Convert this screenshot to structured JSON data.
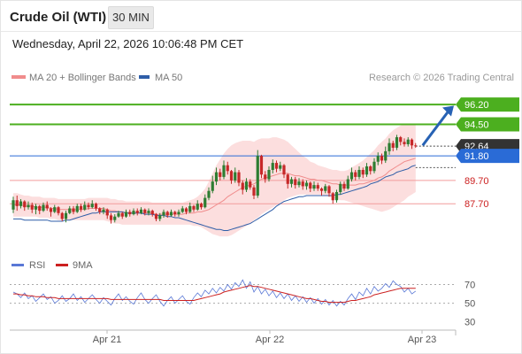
{
  "header": {
    "title": "Crude Oil (WTI)",
    "timeframe": "30 MIN",
    "datetime": "Wednesday, April 22, 2026 10:06:48 PM CET"
  },
  "legend": {
    "items": [
      {
        "label": "MA 20 + Bollinger Bands",
        "color": "#f08c8c"
      },
      {
        "label": "MA 50",
        "color": "#2f5ea8"
      }
    ],
    "credit": "Research © 2026 Trading Central"
  },
  "colors": {
    "up": "#2e7d32",
    "down": "#c62828",
    "target": "#4caf1f",
    "pivot": "#2a6bd6",
    "support": "#f29c9c",
    "current": "#333333",
    "band": "#fcdede",
    "arrow": "#2762b4",
    "rsi": "#5a78d6",
    "rsi_ma": "#cc2020"
  },
  "chart_data": [
    {
      "type": "candlestick",
      "name": "price",
      "x_ticks": [
        "Apr 21",
        "Apr 22",
        "Apr 23"
      ],
      "ylim": [
        84.0,
        97.5
      ],
      "levels": [
        {
          "value": 96.2,
          "label": "96.20",
          "kind": "target"
        },
        {
          "value": 94.5,
          "label": "94.50",
          "kind": "target"
        },
        {
          "value": 92.64,
          "label": "92.64",
          "kind": "current"
        },
        {
          "value": 91.8,
          "label": "91.80",
          "kind": "pivot"
        },
        {
          "value": 89.7,
          "label": "89.70",
          "kind": "support"
        },
        {
          "value": 87.7,
          "label": "87.70",
          "kind": "support"
        }
      ],
      "candles": [
        [
          87.2,
          88.0,
          88.3,
          86.9
        ],
        [
          88.0,
          87.5,
          88.4,
          87.1
        ],
        [
          87.5,
          87.9,
          88.1,
          87.3
        ],
        [
          87.9,
          87.4,
          88.0,
          87.1
        ],
        [
          87.4,
          87.6,
          87.9,
          87.2
        ],
        [
          87.6,
          87.2,
          87.8,
          86.9
        ],
        [
          87.2,
          87.5,
          87.7,
          86.8
        ],
        [
          87.5,
          87.1,
          87.6,
          86.8
        ],
        [
          87.1,
          87.6,
          87.8,
          87.0
        ],
        [
          87.6,
          87.3,
          87.9,
          87.1
        ],
        [
          87.3,
          87.0,
          87.4,
          86.6
        ],
        [
          87.0,
          87.4,
          87.6,
          86.9
        ],
        [
          87.4,
          86.9,
          87.5,
          86.7
        ],
        [
          86.9,
          86.4,
          87.0,
          86.2
        ],
        [
          86.4,
          86.9,
          87.1,
          86.1
        ],
        [
          86.9,
          87.3,
          87.5,
          86.8
        ],
        [
          87.3,
          87.0,
          87.5,
          86.8
        ],
        [
          87.0,
          87.5,
          87.7,
          86.9
        ],
        [
          87.5,
          87.2,
          87.7,
          87.0
        ],
        [
          87.2,
          87.6,
          87.9,
          87.1
        ],
        [
          87.6,
          87.4,
          87.8,
          87.2
        ],
        [
          87.4,
          87.7,
          88.0,
          87.3
        ],
        [
          87.7,
          87.3,
          87.8,
          87.1
        ],
        [
          87.3,
          87.0,
          87.4,
          86.8
        ],
        [
          87.0,
          87.2,
          87.4,
          86.8
        ],
        [
          87.2,
          86.7,
          87.3,
          86.4
        ],
        [
          86.7,
          86.3,
          86.9,
          86.0
        ],
        [
          86.3,
          86.6,
          86.8,
          86.1
        ],
        [
          86.6,
          86.9,
          87.1,
          86.5
        ],
        [
          86.9,
          86.6,
          87.0,
          86.4
        ],
        [
          86.6,
          87.0,
          87.2,
          86.5
        ],
        [
          87.0,
          86.8,
          87.2,
          86.6
        ],
        [
          86.8,
          87.1,
          87.3,
          86.7
        ],
        [
          87.1,
          86.9,
          87.3,
          86.7
        ],
        [
          86.9,
          87.2,
          87.4,
          86.8
        ],
        [
          87.2,
          86.9,
          87.3,
          86.7
        ],
        [
          86.9,
          87.1,
          87.3,
          86.7
        ],
        [
          87.1,
          86.8,
          87.2,
          86.6
        ],
        [
          86.8,
          86.4,
          86.9,
          86.2
        ],
        [
          86.4,
          86.7,
          86.9,
          86.2
        ],
        [
          86.7,
          87.0,
          87.2,
          86.5
        ],
        [
          87.0,
          86.7,
          87.1,
          86.5
        ],
        [
          86.7,
          87.0,
          87.2,
          86.6
        ],
        [
          87.0,
          86.8,
          87.1,
          86.6
        ],
        [
          86.8,
          87.0,
          87.2,
          86.6
        ],
        [
          87.0,
          87.3,
          87.5,
          86.9
        ],
        [
          87.3,
          87.0,
          87.4,
          86.8
        ],
        [
          87.0,
          87.5,
          87.8,
          86.9
        ],
        [
          87.5,
          87.2,
          87.6,
          87.0
        ],
        [
          87.2,
          87.7,
          88.0,
          87.1
        ],
        [
          87.7,
          87.4,
          87.8,
          87.2
        ],
        [
          87.4,
          88.2,
          88.5,
          87.3
        ],
        [
          88.2,
          88.8,
          89.1,
          88.0
        ],
        [
          88.8,
          89.6,
          90.1,
          88.6
        ],
        [
          89.6,
          90.4,
          90.8,
          89.3
        ],
        [
          90.4,
          90.0,
          90.7,
          89.7
        ],
        [
          90.0,
          91.0,
          91.4,
          89.8
        ],
        [
          91.0,
          90.5,
          91.3,
          90.2
        ],
        [
          90.5,
          89.7,
          90.6,
          89.4
        ],
        [
          89.7,
          90.4,
          90.8,
          89.5
        ],
        [
          90.4,
          89.5,
          90.6,
          89.2
        ],
        [
          89.5,
          88.9,
          89.7,
          88.5
        ],
        [
          88.9,
          89.6,
          89.9,
          88.7
        ],
        [
          89.6,
          89.1,
          89.8,
          88.9
        ],
        [
          89.1,
          88.4,
          89.3,
          88.1
        ],
        [
          88.4,
          91.8,
          92.3,
          88.2
        ],
        [
          91.8,
          90.2,
          91.9,
          89.9
        ],
        [
          90.2,
          89.8,
          90.5,
          89.5
        ],
        [
          89.8,
          90.6,
          90.9,
          89.6
        ],
        [
          90.6,
          91.2,
          91.5,
          90.3
        ],
        [
          91.2,
          90.7,
          91.4,
          90.4
        ],
        [
          90.7,
          91.0,
          91.3,
          90.5
        ],
        [
          91.0,
          90.2,
          91.1,
          89.9
        ],
        [
          90.2,
          89.4,
          90.3,
          89.0
        ],
        [
          89.4,
          89.8,
          90.0,
          89.1
        ],
        [
          89.8,
          89.3,
          90.0,
          89.0
        ],
        [
          89.3,
          89.6,
          89.9,
          89.1
        ],
        [
          89.6,
          89.2,
          89.8,
          88.9
        ],
        [
          89.2,
          89.5,
          89.7,
          88.9
        ],
        [
          89.5,
          89.0,
          89.6,
          88.7
        ],
        [
          89.0,
          89.3,
          89.6,
          88.8
        ],
        [
          89.3,
          89.0,
          89.5,
          88.8
        ],
        [
          89.0,
          88.8,
          89.1,
          88.4
        ],
        [
          88.8,
          89.2,
          89.4,
          88.6
        ],
        [
          89.2,
          88.6,
          89.3,
          88.3
        ],
        [
          88.6,
          88.0,
          88.7,
          87.7
        ],
        [
          88.0,
          88.7,
          88.9,
          87.8
        ],
        [
          88.7,
          89.4,
          89.6,
          88.5
        ],
        [
          89.4,
          89.0,
          89.6,
          88.8
        ],
        [
          89.0,
          89.8,
          90.1,
          88.9
        ],
        [
          89.8,
          90.4,
          90.8,
          89.6
        ],
        [
          90.4,
          90.0,
          90.6,
          89.7
        ],
        [
          90.0,
          90.6,
          90.9,
          89.8
        ],
        [
          90.6,
          90.2,
          90.8,
          89.9
        ],
        [
          90.2,
          90.9,
          91.2,
          90.0
        ],
        [
          90.9,
          90.5,
          91.0,
          90.2
        ],
        [
          90.5,
          91.3,
          91.6,
          90.3
        ],
        [
          91.3,
          91.8,
          92.1,
          91.0
        ],
        [
          91.8,
          91.4,
          92.0,
          91.1
        ],
        [
          91.4,
          92.2,
          92.6,
          91.2
        ],
        [
          92.2,
          92.9,
          93.3,
          91.9
        ],
        [
          92.9,
          92.5,
          93.1,
          92.2
        ],
        [
          92.5,
          93.4,
          93.6,
          92.3
        ],
        [
          93.4,
          93.0,
          93.5,
          92.7
        ],
        [
          93.0,
          92.8,
          93.3,
          92.6
        ],
        [
          92.8,
          93.2,
          93.4,
          92.6
        ],
        [
          93.2,
          92.7,
          93.3,
          92.4
        ],
        [
          92.7,
          92.64,
          92.9,
          92.5
        ]
      ],
      "ma20": [
        87.6,
        87.6,
        87.6,
        87.5,
        87.5,
        87.5,
        87.4,
        87.4,
        87.4,
        87.4,
        87.3,
        87.3,
        87.2,
        87.2,
        87.2,
        87.2,
        87.2,
        87.2,
        87.2,
        87.2,
        87.3,
        87.3,
        87.3,
        87.3,
        87.3,
        87.2,
        87.1,
        87.1,
        87.0,
        87.0,
        86.9,
        86.9,
        86.9,
        86.9,
        86.9,
        86.9,
        86.9,
        86.9,
        86.8,
        86.8,
        86.8,
        86.8,
        86.8,
        86.8,
        86.8,
        86.8,
        86.9,
        86.9,
        86.9,
        87.0,
        87.0,
        87.1,
        87.2,
        87.4,
        87.6,
        87.8,
        88.0,
        88.3,
        88.5,
        88.7,
        88.9,
        89.1,
        89.2,
        89.3,
        89.4,
        89.6,
        89.8,
        89.9,
        90.0,
        90.1,
        90.2,
        90.3,
        90.3,
        90.3,
        90.2,
        90.1,
        90.1,
        90.0,
        89.9,
        89.8,
        89.8,
        89.7,
        89.7,
        89.6,
        89.5,
        89.4,
        89.4,
        89.3,
        89.3,
        89.3,
        89.3,
        89.3,
        89.4,
        89.4,
        89.5,
        89.6,
        89.7,
        89.9,
        90.0,
        90.2,
        90.5,
        90.7,
        90.9,
        91.1,
        91.3,
        91.4,
        91.5,
        91.6
      ],
      "upper_band": [
        88.6,
        88.6,
        88.5,
        88.4,
        88.4,
        88.3,
        88.3,
        88.3,
        88.2,
        88.2,
        88.2,
        88.2,
        88.1,
        88.1,
        88.1,
        88.1,
        88.1,
        88.1,
        88.1,
        88.1,
        88.2,
        88.2,
        88.2,
        88.2,
        88.2,
        88.2,
        88.1,
        88.1,
        88.0,
        88.0,
        87.9,
        87.9,
        87.9,
        87.9,
        87.9,
        87.9,
        87.9,
        87.8,
        87.8,
        87.8,
        87.8,
        87.8,
        87.8,
        87.8,
        87.8,
        87.8,
        87.9,
        88.0,
        88.1,
        88.3,
        88.6,
        89.0,
        89.6,
        90.3,
        91.0,
        91.5,
        92.0,
        92.4,
        92.7,
        92.9,
        93.0,
        93.1,
        93.1,
        93.1,
        93.0,
        93.2,
        93.3,
        93.3,
        93.3,
        93.4,
        93.4,
        93.3,
        93.2,
        93.0,
        92.7,
        92.4,
        92.1,
        91.8,
        91.6,
        91.3,
        91.2,
        91.0,
        90.9,
        90.8,
        90.7,
        90.6,
        90.6,
        90.5,
        90.5,
        90.6,
        90.8,
        91.0,
        91.2,
        91.4,
        91.7,
        92.0,
        92.3,
        92.7,
        93.0,
        93.3,
        93.7,
        94.0,
        94.2,
        94.4,
        94.5,
        94.5,
        94.5,
        94.5
      ],
      "lower_band": [
        86.6,
        86.6,
        86.6,
        86.6,
        86.6,
        86.6,
        86.6,
        86.5,
        86.5,
        86.5,
        86.4,
        86.4,
        86.3,
        86.3,
        86.3,
        86.3,
        86.3,
        86.3,
        86.3,
        86.3,
        86.3,
        86.3,
        86.3,
        86.3,
        86.3,
        86.2,
        86.1,
        86.0,
        86.0,
        85.9,
        85.9,
        85.9,
        85.9,
        85.9,
        85.9,
        85.9,
        85.9,
        85.9,
        85.9,
        85.9,
        85.9,
        85.9,
        85.9,
        85.9,
        85.9,
        85.9,
        85.9,
        85.9,
        85.8,
        85.8,
        85.7,
        85.5,
        85.3,
        85.1,
        85.0,
        84.9,
        84.9,
        84.9,
        85.0,
        85.2,
        85.4,
        85.6,
        85.8,
        86.0,
        86.3,
        86.5,
        86.8,
        87.0,
        87.2,
        87.4,
        87.6,
        87.8,
        88.0,
        88.2,
        88.3,
        88.4,
        88.5,
        88.5,
        88.5,
        88.5,
        88.5,
        88.5,
        88.5,
        88.4,
        88.3,
        88.2,
        88.1,
        88.0,
        88.0,
        87.9,
        87.8,
        87.7,
        87.6,
        87.5,
        87.4,
        87.3,
        87.2,
        87.1,
        87.0,
        87.1,
        87.2,
        87.4,
        87.6,
        87.8,
        88.0,
        88.3,
        88.5,
        88.7
      ],
      "ma50": [
        86.4,
        86.4,
        86.4,
        86.3,
        86.3,
        86.3,
        86.3,
        86.3,
        86.3,
        86.3,
        86.2,
        86.2,
        86.2,
        86.2,
        86.3,
        86.3,
        86.4,
        86.5,
        86.6,
        86.7,
        86.8,
        86.9,
        86.9,
        87.0,
        87.0,
        87.0,
        87.0,
        87.0,
        87.0,
        87.0,
        86.9,
        86.9,
        86.9,
        86.9,
        86.9,
        86.8,
        86.8,
        86.8,
        86.7,
        86.7,
        86.7,
        86.6,
        86.6,
        86.5,
        86.5,
        86.4,
        86.3,
        86.2,
        86.1,
        86.0,
        85.9,
        85.8,
        85.7,
        85.6,
        85.5,
        85.5,
        85.4,
        85.4,
        85.5,
        85.6,
        85.7,
        85.8,
        85.9,
        86.0,
        86.2,
        86.4,
        86.6,
        86.8,
        87.0,
        87.2,
        87.5,
        87.7,
        87.9,
        88.0,
        88.1,
        88.2,
        88.3,
        88.3,
        88.4,
        88.4,
        88.4,
        88.4,
        88.4,
        88.4,
        88.4,
        88.4,
        88.5,
        88.5,
        88.6,
        88.7,
        88.8,
        88.9,
        89.0,
        89.1,
        89.2,
        89.4,
        89.5,
        89.6,
        89.8,
        90.0,
        90.1,
        90.2,
        90.4,
        90.5,
        90.6,
        90.7,
        90.9,
        91.0
      ]
    },
    {
      "type": "line",
      "name": "oscillator",
      "legend": [
        {
          "label": "RSI",
          "color": "#5a78d6"
        },
        {
          "label": "9MA",
          "color": "#cc2020"
        }
      ],
      "y_ticks": [
        70,
        50,
        30
      ],
      "ylim": [
        25,
        80
      ],
      "rsi": [
        62,
        60,
        56,
        61,
        55,
        58,
        52,
        56,
        60,
        54,
        57,
        50,
        53,
        58,
        52,
        55,
        60,
        53,
        57,
        51,
        55,
        59,
        54,
        50,
        56,
        52,
        48,
        55,
        60,
        53,
        57,
        52,
        49,
        56,
        61,
        54,
        50,
        55,
        59,
        52,
        47,
        53,
        57,
        50,
        54,
        58,
        52,
        49,
        56,
        61,
        57,
        64,
        60,
        66,
        61,
        67,
        63,
        70,
        65,
        72,
        68,
        75,
        66,
        73,
        62,
        68,
        60,
        65,
        58,
        63,
        56,
        61,
        55,
        60,
        53,
        58,
        52,
        57,
        51,
        56,
        50,
        55,
        49,
        54,
        48,
        53,
        47,
        52,
        48,
        55,
        60,
        54,
        62,
        58,
        66,
        60,
        68,
        63,
        66,
        71,
        67,
        74,
        70,
        68,
        62,
        66,
        60,
        63
      ],
      "ma9": [
        60,
        60,
        59,
        59,
        58,
        58,
        57,
        57,
        57,
        56,
        56,
        56,
        55,
        55,
        55,
        55,
        55,
        55,
        55,
        55,
        55,
        55,
        55,
        55,
        55,
        55,
        54,
        54,
        54,
        54,
        54,
        54,
        54,
        54,
        54,
        54,
        54,
        54,
        54,
        54,
        53,
        53,
        53,
        53,
        53,
        53,
        53,
        53,
        53,
        54,
        55,
        56,
        57,
        58,
        59,
        60,
        62,
        63,
        64,
        65,
        66,
        67,
        68,
        69,
        68,
        68,
        67,
        66,
        65,
        64,
        63,
        62,
        61,
        60,
        59,
        58,
        57,
        56,
        55,
        55,
        54,
        53,
        52,
        52,
        51,
        51,
        51,
        51,
        51,
        52,
        53,
        53,
        54,
        55,
        56,
        57,
        59,
        60,
        61,
        62,
        63,
        64,
        65,
        66,
        66,
        66,
        66,
        66
      ]
    }
  ]
}
